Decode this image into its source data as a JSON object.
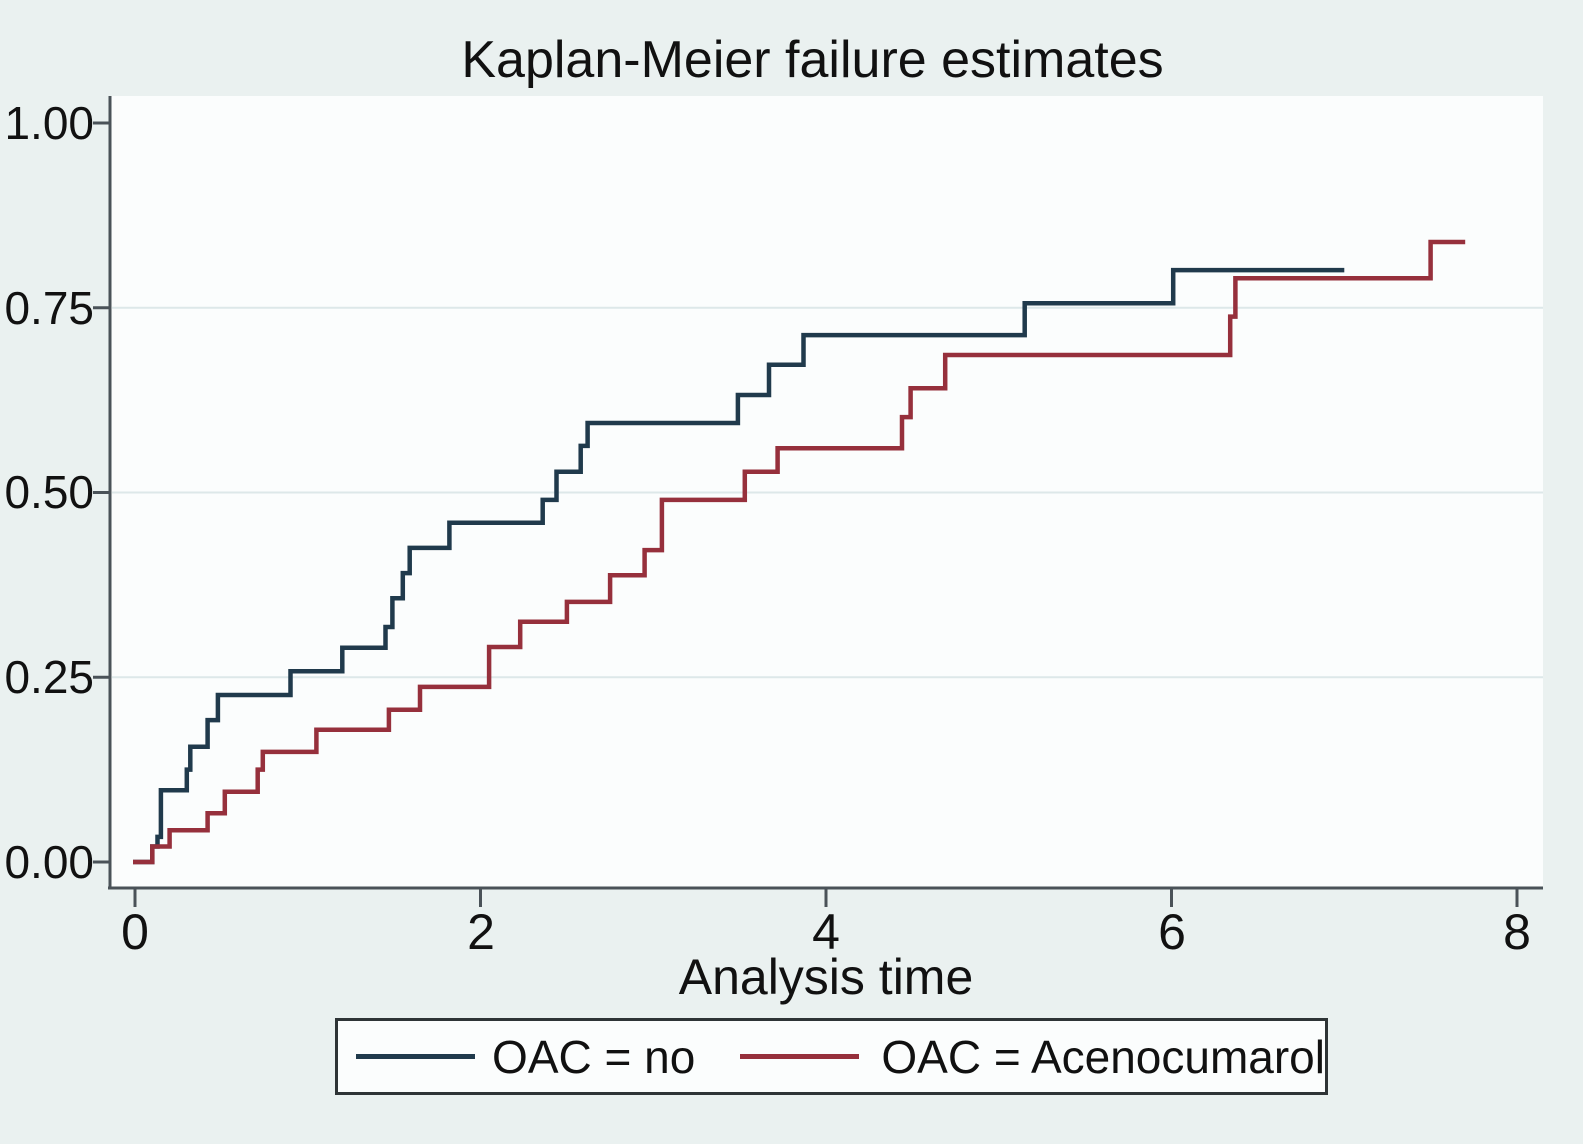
{
  "figure": {
    "title": "Kaplan-Meier failure estimates",
    "x_axis_title": "Analysis time"
  },
  "chart_data": {
    "type": "line",
    "subtype": "kaplan-meier-failure-step",
    "title": "Kaplan-Meier failure estimates",
    "xlabel": "Analysis time",
    "ylabel": "",
    "xlim": [
      0,
      8.15
    ],
    "ylim": [
      0,
      1.04
    ],
    "x_ticks": [
      0,
      2,
      4,
      6,
      8
    ],
    "x_tick_labels": [
      "0",
      "2",
      "4",
      "6",
      "8"
    ],
    "y_ticks": [
      0,
      0.25,
      0.5,
      0.75,
      1
    ],
    "y_tick_labels": [
      "0.00",
      "0.25",
      "0.50",
      "0.75",
      "1.00"
    ],
    "grid_y": [
      0.25,
      0.5,
      0.75
    ],
    "grid_on": true,
    "legend_position": "bottom",
    "colors": {
      "page_bg": "#eaf1f0",
      "plot_bg": "#fbfdfd",
      "grid": "#dde8e9",
      "axis": "#4a5258",
      "text": "#111111",
      "series_no": "#203a4c",
      "series_acenocumarol": "#96303c"
    },
    "series": [
      {
        "name": "OAC = no",
        "color": "#203a4c",
        "start_time": 0,
        "end_time": 7.0,
        "steps": [
          [
            0.1,
            0.021
          ],
          [
            0.13,
            0.034
          ],
          [
            0.15,
            0.097
          ],
          [
            0.3,
            0.125
          ],
          [
            0.32,
            0.156
          ],
          [
            0.42,
            0.192
          ],
          [
            0.48,
            0.226
          ],
          [
            0.9,
            0.258
          ],
          [
            1.2,
            0.29
          ],
          [
            1.45,
            0.318
          ],
          [
            1.49,
            0.357
          ],
          [
            1.55,
            0.391
          ],
          [
            1.59,
            0.425
          ],
          [
            1.82,
            0.459
          ],
          [
            2.36,
            0.49
          ],
          [
            2.44,
            0.528
          ],
          [
            2.58,
            0.563
          ],
          [
            2.62,
            0.594
          ],
          [
            3.49,
            0.632
          ],
          [
            3.67,
            0.673
          ],
          [
            3.87,
            0.713
          ],
          [
            5.15,
            0.756
          ],
          [
            6.01,
            0.801
          ]
        ]
      },
      {
        "name": "OAC = Acenocumarol",
        "color": "#96303c",
        "start_time": 0,
        "end_time": 7.7,
        "steps": [
          [
            0.1,
            0.021
          ],
          [
            0.2,
            0.043
          ],
          [
            0.42,
            0.066
          ],
          [
            0.52,
            0.095
          ],
          [
            0.71,
            0.125
          ],
          [
            0.74,
            0.149
          ],
          [
            1.05,
            0.179
          ],
          [
            1.47,
            0.206
          ],
          [
            1.65,
            0.237
          ],
          [
            2.05,
            0.291
          ],
          [
            2.23,
            0.325
          ],
          [
            2.5,
            0.352
          ],
          [
            2.75,
            0.388
          ],
          [
            2.95,
            0.422
          ],
          [
            3.05,
            0.49
          ],
          [
            3.53,
            0.528
          ],
          [
            3.72,
            0.56
          ],
          [
            4.44,
            0.602
          ],
          [
            4.49,
            0.641
          ],
          [
            4.69,
            0.686
          ],
          [
            6.34,
            0.738
          ],
          [
            6.37,
            0.79
          ],
          [
            7.5,
            0.839
          ]
        ]
      }
    ]
  }
}
